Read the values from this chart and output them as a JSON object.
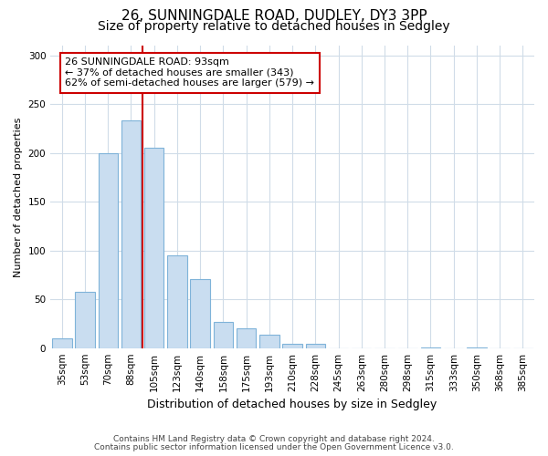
{
  "title1": "26, SUNNINGDALE ROAD, DUDLEY, DY3 3PP",
  "title2": "Size of property relative to detached houses in Sedgley",
  "xlabel": "Distribution of detached houses by size in Sedgley",
  "ylabel": "Number of detached properties",
  "categories": [
    "35sqm",
    "53sqm",
    "70sqm",
    "88sqm",
    "105sqm",
    "123sqm",
    "140sqm",
    "158sqm",
    "175sqm",
    "193sqm",
    "210sqm",
    "228sqm",
    "245sqm",
    "263sqm",
    "280sqm",
    "298sqm",
    "315sqm",
    "333sqm",
    "350sqm",
    "368sqm",
    "385sqm"
  ],
  "values": [
    10,
    58,
    200,
    233,
    205,
    95,
    71,
    27,
    20,
    14,
    4,
    4,
    0,
    0,
    0,
    0,
    1,
    0,
    1,
    0,
    0
  ],
  "bar_color": "#c9ddf0",
  "bar_edge_color": "#7fb3d9",
  "vline_x": 3.5,
  "vline_color": "#cc0000",
  "annotation_line1": "26 SUNNINGDALE ROAD: 93sqm",
  "annotation_line2": "← 37% of detached houses are smaller (343)",
  "annotation_line3": "62% of semi-detached houses are larger (579) →",
  "annotation_box_color": "#ffffff",
  "annotation_box_edge": "#cc0000",
  "ylim": [
    0,
    310
  ],
  "yticks": [
    0,
    50,
    100,
    150,
    200,
    250,
    300
  ],
  "footnote1": "Contains HM Land Registry data © Crown copyright and database right 2024.",
  "footnote2": "Contains public sector information licensed under the Open Government Licence v3.0.",
  "bg_color": "#ffffff",
  "plot_bg_color": "#ffffff",
  "grid_color": "#d0dce8",
  "title1_fontsize": 11,
  "title2_fontsize": 10,
  "xlabel_fontsize": 9,
  "ylabel_fontsize": 8,
  "tick_fontsize": 7.5,
  "footnote_fontsize": 6.5
}
